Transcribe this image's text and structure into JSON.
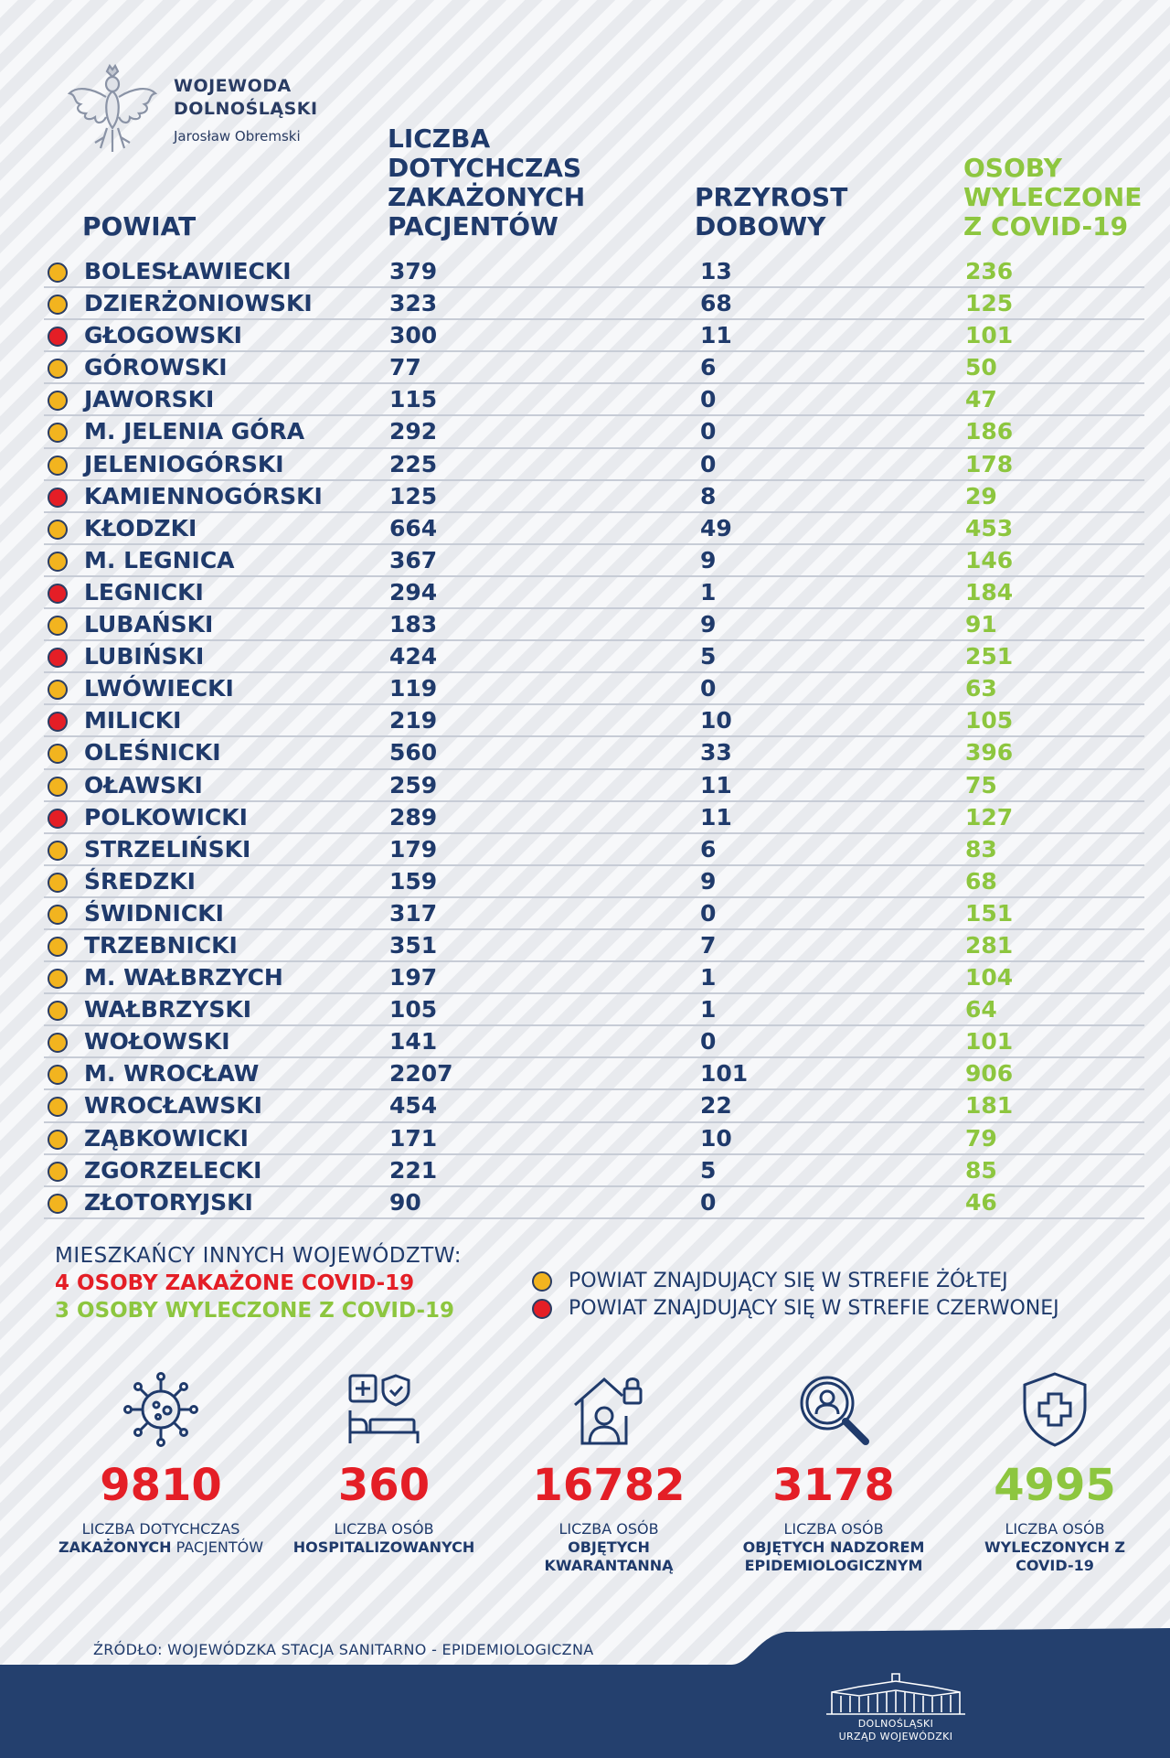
{
  "header": {
    "org_line1": "WOJEWODA",
    "org_line2": "DOLNOŚLĄSKI",
    "org_person": "Jarosław Obremski",
    "col_powiat": "POWIAT",
    "col_total": "LICZBA DOTYCHCZAS ZAKAŻONYCH PACJENTÓW",
    "col_daily": "PRZYROST DOBOWY",
    "col_recovered": "OSOBY WYLECZONE Z COVID-19"
  },
  "colors": {
    "yellow_zone": "#f2b41f",
    "red_zone": "#e41e26",
    "navy": "#1f3a6b",
    "green": "#8dc63f"
  },
  "rows": [
    {
      "zone": "yellow",
      "name": "BOLESŁAWIECKI",
      "total": "379",
      "daily": "13",
      "recovered": "236"
    },
    {
      "zone": "yellow",
      "name": "DZIERŻONIOWSKI",
      "total": "323",
      "daily": "68",
      "recovered": "125"
    },
    {
      "zone": "red",
      "name": "GŁOGOWSKI",
      "total": "300",
      "daily": "11",
      "recovered": "101"
    },
    {
      "zone": "yellow",
      "name": "GÓROWSKI",
      "total": "77",
      "daily": "6",
      "recovered": "50"
    },
    {
      "zone": "yellow",
      "name": "JAWORSKI",
      "total": "115",
      "daily": "0",
      "recovered": "47"
    },
    {
      "zone": "yellow",
      "name": "M. JELENIA GÓRA",
      "total": "292",
      "daily": "0",
      "recovered": "186"
    },
    {
      "zone": "yellow",
      "name": "JELENIOGÓRSKI",
      "total": "225",
      "daily": "0",
      "recovered": "178"
    },
    {
      "zone": "red",
      "name": "KAMIENNOGÓRSKI",
      "total": "125",
      "daily": "8",
      "recovered": "29"
    },
    {
      "zone": "yellow",
      "name": "KŁODZKI",
      "total": "664",
      "daily": "49",
      "recovered": "453"
    },
    {
      "zone": "yellow",
      "name": "M. LEGNICA",
      "total": "367",
      "daily": "9",
      "recovered": "146"
    },
    {
      "zone": "red",
      "name": "LEGNICKI",
      "total": "294",
      "daily": "1",
      "recovered": "184"
    },
    {
      "zone": "yellow",
      "name": "LUBAŃSKI",
      "total": "183",
      "daily": "9",
      "recovered": "91"
    },
    {
      "zone": "red",
      "name": "LUBIŃSKI",
      "total": "424",
      "daily": "5",
      "recovered": "251"
    },
    {
      "zone": "yellow",
      "name": "LWÓWIECKI",
      "total": "119",
      "daily": "0",
      "recovered": "63"
    },
    {
      "zone": "red",
      "name": "MILICKI",
      "total": "219",
      "daily": "10",
      "recovered": "105"
    },
    {
      "zone": "yellow",
      "name": "OLEŚNICKI",
      "total": "560",
      "daily": "33",
      "recovered": "396"
    },
    {
      "zone": "yellow",
      "name": "OŁAWSKI",
      "total": "259",
      "daily": "11",
      "recovered": "75"
    },
    {
      "zone": "red",
      "name": "POLKOWICKI",
      "total": "289",
      "daily": "11",
      "recovered": "127"
    },
    {
      "zone": "yellow",
      "name": "STRZELIŃSKI",
      "total": "179",
      "daily": "6",
      "recovered": "83"
    },
    {
      "zone": "yellow",
      "name": "ŚREDZKI",
      "total": "159",
      "daily": "9",
      "recovered": "68"
    },
    {
      "zone": "yellow",
      "name": "ŚWIDNICKI",
      "total": "317",
      "daily": "0",
      "recovered": "151"
    },
    {
      "zone": "yellow",
      "name": "TRZEBNICKI",
      "total": "351",
      "daily": "7",
      "recovered": "281"
    },
    {
      "zone": "yellow",
      "name": "M. WAŁBRZYCH",
      "total": "197",
      "daily": "1",
      "recovered": "104"
    },
    {
      "zone": "yellow",
      "name": "WAŁBRZYSKI",
      "total": "105",
      "daily": "1",
      "recovered": "64"
    },
    {
      "zone": "yellow",
      "name": "WOŁOWSKI",
      "total": "141",
      "daily": "0",
      "recovered": "101"
    },
    {
      "zone": "yellow",
      "name": "M. WROCŁAW",
      "total": "2207",
      "daily": "101",
      "recovered": "906"
    },
    {
      "zone": "yellow",
      "name": "WROCŁAWSKI",
      "total": "454",
      "daily": "22",
      "recovered": "181"
    },
    {
      "zone": "yellow",
      "name": "ZĄBKOWICKI",
      "total": "171",
      "daily": "10",
      "recovered": "79"
    },
    {
      "zone": "yellow",
      "name": "ZGORZELECKI",
      "total": "221",
      "daily": "5",
      "recovered": "85"
    },
    {
      "zone": "yellow",
      "name": "ZŁOTORYJSKI",
      "total": "90",
      "daily": "0",
      "recovered": "46"
    }
  ],
  "others": {
    "title": "MIESZKAŃCY INNYCH WOJEWÓDZTW:",
    "infected": "4 OSOBY ZAKAŻONE COVID-19",
    "recovered": "3 OSOBY WYLECZONE Z COVID-19"
  },
  "legend": {
    "yellow": "POWIAT ZNAJDUJĄCY SIĘ W STREFIE ŻÓŁTEJ",
    "red": "POWIAT ZNAJDUJĄCY SIĘ W STREFIE CZERWONEJ"
  },
  "stats": [
    {
      "icon": "virus-icon",
      "value": "9810",
      "label_a": "LICZBA DOTYCHCZAS",
      "label_b_bold": "ZAKAŻONYCH",
      "label_b_rest": " PACJENTÓW",
      "color": "red"
    },
    {
      "icon": "hospital-bed-icon",
      "value": "360",
      "label_a": "LICZBA OSÓB",
      "label_b_bold": "HOSPITALIZOWANYCH",
      "label_b_rest": "",
      "color": "red"
    },
    {
      "icon": "home-quarantine-icon",
      "value": "16782",
      "label_a": "LICZBA OSÓB",
      "label_b_bold": "OBJĘTYCH KWARANTANNĄ",
      "label_b_rest": "",
      "color": "red"
    },
    {
      "icon": "magnifier-person-icon",
      "value": "3178",
      "label_a": "LICZBA OSÓB",
      "label_b_bold": "OBJĘTYCH NADZOREM EPIDEMIOLOGICZNYM",
      "label_b_rest": "",
      "color": "red"
    },
    {
      "icon": "shield-cross-icon",
      "value": "4995",
      "label_a": "LICZBA OSÓB",
      "label_b_bold": "WYLECZONYCH Z COVID-19",
      "label_b_rest": "",
      "color": "green"
    }
  ],
  "source": "ŹRÓDŁO: WOJEWÓDZKA STACJA SANITARNO - EPIDEMIOLOGICZNA",
  "footer": {
    "line1": "DOLNOŚLĄSKI",
    "line2": "URZĄD WOJEWÓDZKI"
  }
}
